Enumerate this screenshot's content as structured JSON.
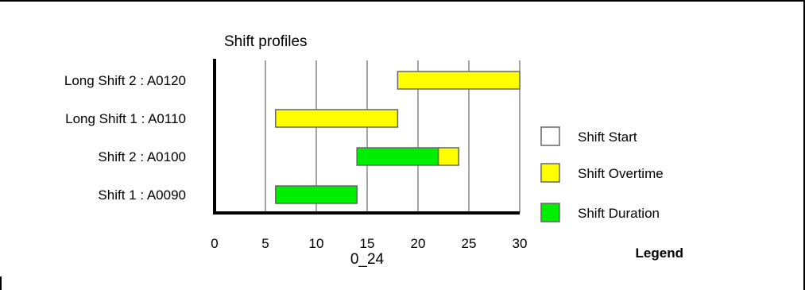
{
  "chart_data": {
    "type": "bar",
    "orientation": "horizontal",
    "stacked": true,
    "title": "Shift profiles",
    "xlabel": "0_24",
    "ylabel": "",
    "xlim": [
      0,
      30
    ],
    "xticks": [
      0,
      5,
      10,
      15,
      20,
      25,
      30
    ],
    "grid": "vertical",
    "legend_position": "right",
    "legend_title": "Legend",
    "categories": [
      "Long Shift 2 : A0120",
      "Long Shift 1 : A0110",
      "Shift 2 : A0100",
      "Shift 1 : A0090"
    ],
    "series": [
      {
        "name": "Shift Start",
        "color": "#ffffff",
        "values": [
          18,
          6,
          14,
          6
        ]
      },
      {
        "name": "Shift Overtime",
        "color": "#ffff00",
        "values": [
          12,
          12,
          2,
          0
        ]
      },
      {
        "name": "Shift Duration",
        "color": "#00ee00",
        "values": [
          0,
          0,
          8,
          8
        ]
      }
    ],
    "segments": [
      {
        "category": "Long Shift 2 : A0120",
        "series": "Shift Overtime",
        "start": 18,
        "end": 30
      },
      {
        "category": "Long Shift 1 : A0110",
        "series": "Shift Overtime",
        "start": 6,
        "end": 18
      },
      {
        "category": "Shift 2 : A0100",
        "series": "Shift Duration",
        "start": 14,
        "end": 22
      },
      {
        "category": "Shift 2 : A0100",
        "series": "Shift Overtime",
        "start": 22,
        "end": 24
      },
      {
        "category": "Shift 1 : A0090",
        "series": "Shift Duration",
        "start": 6,
        "end": 14
      }
    ]
  }
}
